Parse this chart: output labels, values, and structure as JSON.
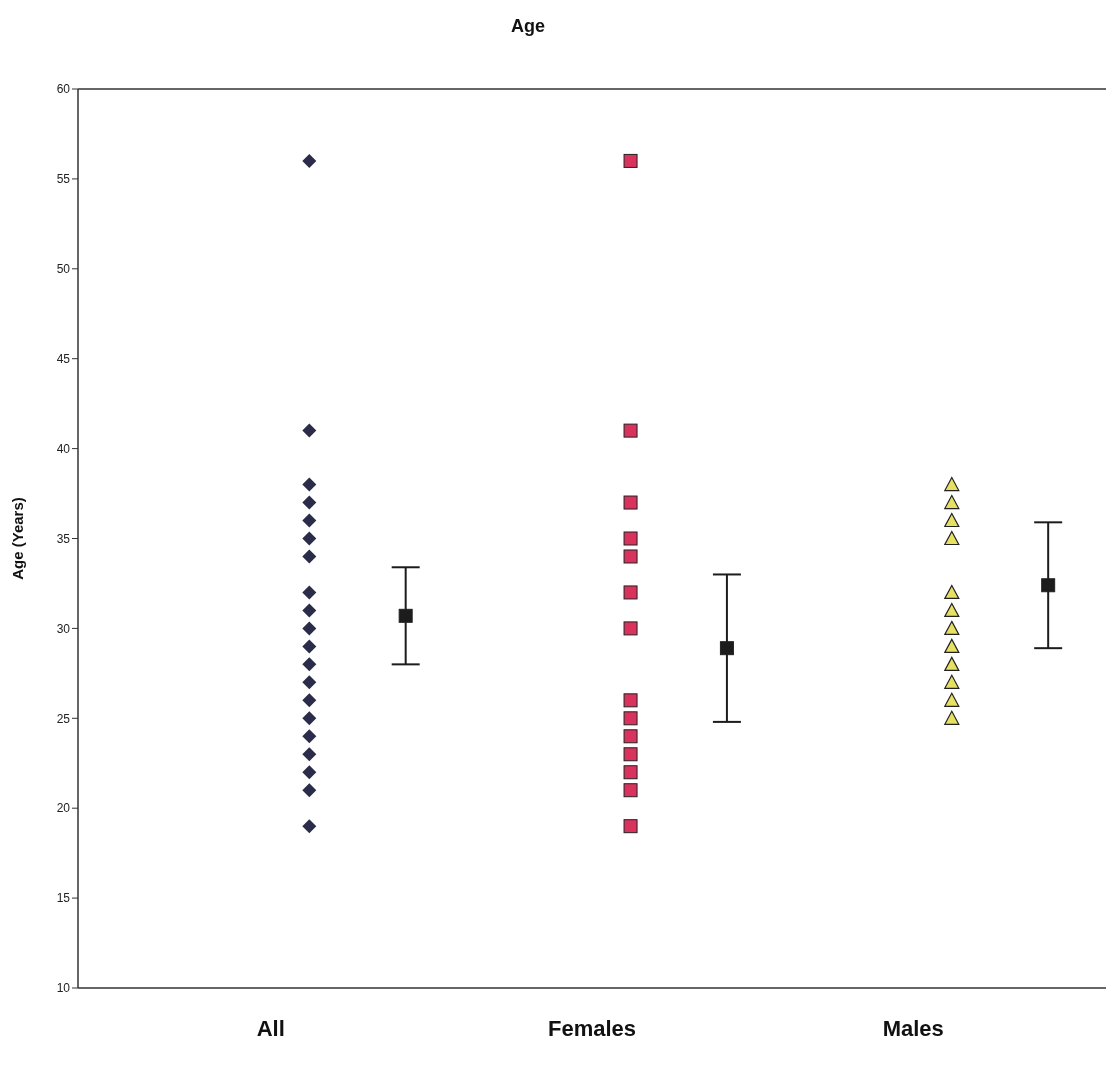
{
  "chart_data": {
    "type": "scatter",
    "title": "Age",
    "ylabel": "Age (Years)",
    "categories": [
      "All",
      "Females",
      "Males"
    ],
    "ylim": [
      10,
      60
    ],
    "yticks": [
      10,
      15,
      20,
      25,
      30,
      35,
      40,
      45,
      50,
      55,
      60
    ],
    "grid": false,
    "series": [
      {
        "marker": "diamond",
        "color": "#2b2b4a",
        "x": [
          "All",
          "All",
          "All",
          "All",
          "All",
          "All",
          "All",
          "All",
          "All",
          "All",
          "All",
          "All",
          "All",
          "All",
          "All",
          "All",
          "All",
          "All",
          "All",
          "All"
        ],
        "values": [
          56,
          41,
          38,
          37,
          36,
          35,
          34,
          32,
          31,
          30,
          29,
          28,
          27,
          26,
          25,
          24,
          23,
          22,
          21,
          19
        ]
      },
      {
        "marker": "square",
        "color": "#d9325c",
        "x": [
          "Females",
          "Females",
          "Females",
          "Females",
          "Females",
          "Females",
          "Females",
          "Females",
          "Females",
          "Females",
          "Females",
          "Females",
          "Females",
          "Females"
        ],
        "values": [
          56,
          41,
          37,
          35,
          34,
          32,
          30,
          26,
          25,
          24,
          23,
          22,
          21,
          19
        ]
      },
      {
        "marker": "triangle",
        "color": "#e6e063",
        "x": [
          "Males",
          "Males",
          "Males",
          "Males",
          "Males",
          "Males",
          "Males",
          "Males",
          "Males",
          "Males",
          "Males",
          "Males"
        ],
        "values": [
          38,
          37,
          36,
          35,
          32,
          31,
          30,
          29,
          28,
          27,
          26,
          25
        ]
      },
      {
        "marker": "square",
        "color": "#1c1c1c",
        "x": [
          "All",
          "Females",
          "Males"
        ],
        "values": [
          30.7,
          28.9,
          32.4
        ],
        "errors": [
          2.7,
          4.1,
          3.5
        ]
      }
    ]
  }
}
